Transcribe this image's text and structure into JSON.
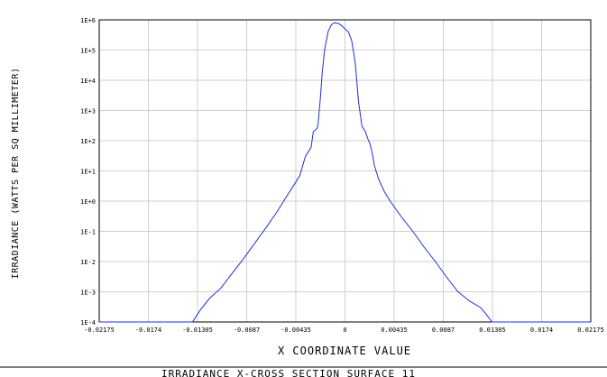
{
  "chart_data": {
    "type": "line",
    "title": "",
    "caption": "IRRADIANCE X-CROSS SECTION SURFACE 11",
    "xlabel": "X COORDINATE VALUE",
    "ylabel": "IRRADIANCE (WATTS PER SQ MILLIMETER)",
    "xlim": [
      -0.02175,
      0.02175
    ],
    "ylim": [
      0.0001,
      1000000
    ],
    "yscale": "log",
    "grid": true,
    "line_color": "#1f2fd6",
    "x_tick_labels": [
      "-0.02175",
      "-0.0174",
      "-0.01305",
      "-0.0087",
      "-0.00435",
      "0",
      "0.00435",
      "0.0087",
      "0.01305",
      "0.0174",
      "0.02175"
    ],
    "y_tick_labels": [
      "1E-4",
      "1E-3",
      "1E-2",
      "1E-1",
      "1E+0",
      "1E+1",
      "1E+2",
      "1E+3",
      "1E+4",
      "1E+5",
      "1E+6"
    ],
    "series": [
      {
        "x": [
          -0.02175,
          -0.0175,
          -0.0135,
          -0.0128,
          -0.012,
          -0.011,
          -0.01,
          -0.009,
          -0.008,
          -0.007,
          -0.006,
          -0.0055,
          -0.005,
          -0.0045,
          -0.004,
          -0.0035,
          -0.003,
          -0.0028,
          -0.0025,
          -0.0024,
          -0.0022,
          -0.002,
          -0.0018,
          -0.0015,
          -0.0012,
          -0.0009,
          -0.0006,
          -0.0003,
          0.0,
          0.0003,
          0.0006,
          0.0009,
          0.0012,
          0.0015,
          0.0018,
          0.002,
          0.0022,
          0.0024,
          0.0026,
          0.003,
          0.0035,
          0.004,
          0.005,
          0.006,
          0.007,
          0.008,
          0.009,
          0.01,
          0.011,
          0.012,
          0.0125,
          0.013,
          0.0135,
          0.0175,
          0.02175
        ],
        "y": [
          0.0001,
          0.0001,
          0.0001,
          0.00025,
          0.0006,
          0.0013,
          0.004,
          0.012,
          0.04,
          0.13,
          0.45,
          0.9,
          1.8,
          3.5,
          7,
          30,
          60,
          200,
          250,
          300,
          2000,
          20000,
          100000,
          400000,
          700000,
          800000,
          760000,
          650000,
          500000,
          400000,
          200000,
          40000,
          2000,
          300,
          200,
          120,
          80,
          40,
          15,
          5,
          2,
          1,
          0.3,
          0.1,
          0.03,
          0.01,
          0.003,
          0.001,
          0.0005,
          0.0003,
          0.00018,
          0.0001,
          0.0001,
          0.0001,
          0.0001
        ]
      }
    ]
  }
}
